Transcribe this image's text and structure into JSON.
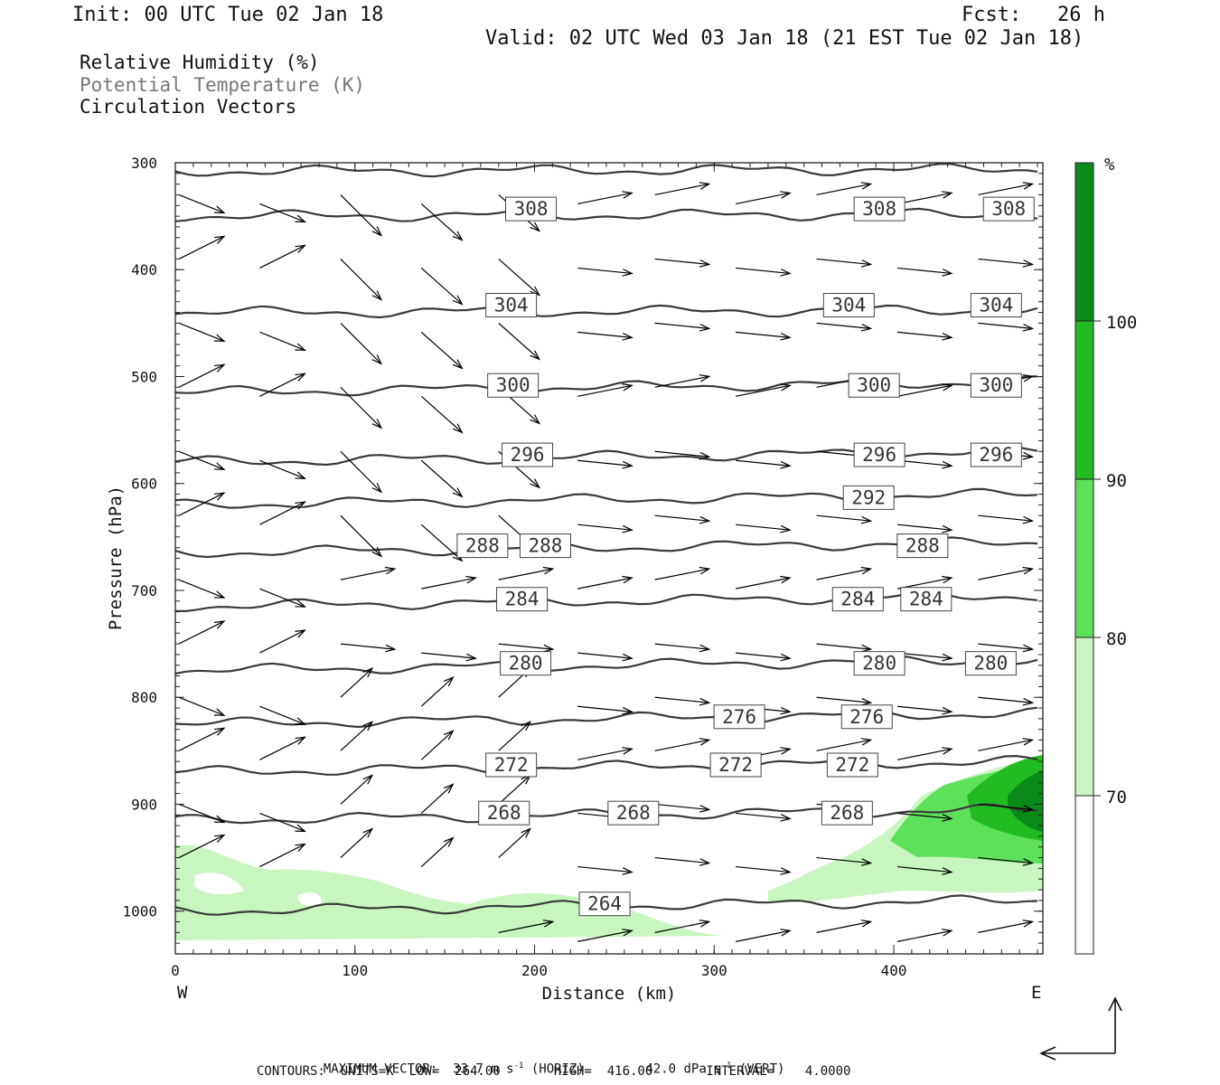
{
  "header": {
    "init": "Init: 00 UTC Tue 02 Jan 18",
    "fcst": "Fcst:   26 h",
    "valid": "Valid: 02 UTC Wed 03 Jan 18 (21 EST Tue 02 Jan 18)"
  },
  "legend": {
    "rh": "Relative Humidity (%)",
    "theta": "Potential Temperature (K)",
    "vectors": "Circulation Vectors"
  },
  "footer": {
    "max_vector": "MAXIMUM VECTOR:  33.7 m s",
    "horiz": "(HORIZ)",
    "vert_val": "42.0 dPa s",
    "vert": "(VERT)",
    "exp": "-1",
    "contours": "CONTOURS:  UNITS=K  LOW=  264.00       HIGH=  416.00       INTERVAL=    4.0000"
  },
  "colorbar": {
    "unit": "%",
    "levels": [
      "70",
      "80",
      "90",
      "100"
    ],
    "colors": [
      "#c8f5c0",
      "#5fe05a",
      "#22bb22",
      "#0a8a18"
    ]
  },
  "chart_data": {
    "type": "cross-section",
    "xlabel": "Distance (km)",
    "ylabel": "Pressure (hPa)",
    "x_ticks": [
      0,
      100,
      200,
      300,
      400
    ],
    "y_ticks": [
      300,
      400,
      500,
      600,
      700,
      800,
      900,
      1000
    ],
    "xlim": [
      0,
      483
    ],
    "ylim": [
      300,
      1040
    ],
    "x_end_labels": {
      "left": "W",
      "right": "E"
    },
    "theta_contours": [
      {
        "level": 308,
        "p0": 308,
        "labels": []
      },
      {
        "level": 308,
        "p": 350,
        "labels": [
          [
            198,
            "308"
          ],
          [
            392,
            "308"
          ],
          [
            464,
            "308"
          ]
        ]
      },
      {
        "level": 304,
        "p": 440,
        "labels": [
          [
            187,
            "304"
          ],
          [
            375,
            "304"
          ],
          [
            457,
            "304"
          ]
        ]
      },
      {
        "level": 300,
        "p": 515,
        "labels": [
          [
            188,
            "300"
          ],
          [
            389,
            "300"
          ],
          [
            457,
            "300"
          ]
        ]
      },
      {
        "level": 296,
        "p": 580,
        "labels": [
          [
            196,
            "296"
          ],
          [
            392,
            "296"
          ],
          [
            457,
            "296"
          ]
        ]
      },
      {
        "level": 292,
        "p": 620,
        "labels": [
          [
            386,
            "292"
          ]
        ]
      },
      {
        "level": 288,
        "p": 665,
        "labels": [
          [
            171,
            "288"
          ],
          [
            206,
            "288"
          ],
          [
            416,
            "288"
          ]
        ]
      },
      {
        "level": 284,
        "p": 715,
        "labels": [
          [
            193,
            "284"
          ],
          [
            380,
            "284"
          ],
          [
            418,
            "284"
          ]
        ]
      },
      {
        "level": 280,
        "p": 775,
        "labels": [
          [
            195,
            "280"
          ],
          [
            392,
            "280"
          ],
          [
            454,
            "280"
          ]
        ]
      },
      {
        "level": 276,
        "p": 825,
        "labels": [
          [
            314,
            "276"
          ],
          [
            385,
            "276"
          ]
        ]
      },
      {
        "level": 272,
        "p": 870,
        "labels": [
          [
            187,
            "272"
          ],
          [
            312,
            "272"
          ],
          [
            377,
            "272"
          ]
        ]
      },
      {
        "level": 268,
        "p": 915,
        "labels": [
          [
            183,
            "268"
          ],
          [
            255,
            "268"
          ],
          [
            374,
            "268"
          ]
        ]
      },
      {
        "level": 264,
        "p": 1000,
        "labels": [
          [
            239,
            "264"
          ]
        ]
      }
    ]
  }
}
